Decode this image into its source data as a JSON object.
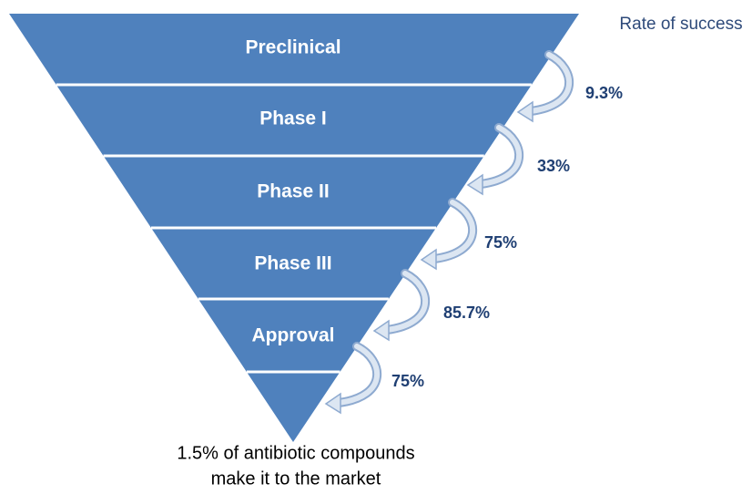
{
  "legend_title": "Rate of success",
  "stages": [
    {
      "label": "Preclinical"
    },
    {
      "label": "Phase I"
    },
    {
      "label": "Phase II"
    },
    {
      "label": "Phase III"
    },
    {
      "label": "Approval"
    }
  ],
  "rates": [
    "9.3%",
    "33%",
    "75%",
    "85.7%",
    "75%"
  ],
  "footer": [
    "1.5% of antibiotic compounds",
    "make it to the market"
  ]
}
